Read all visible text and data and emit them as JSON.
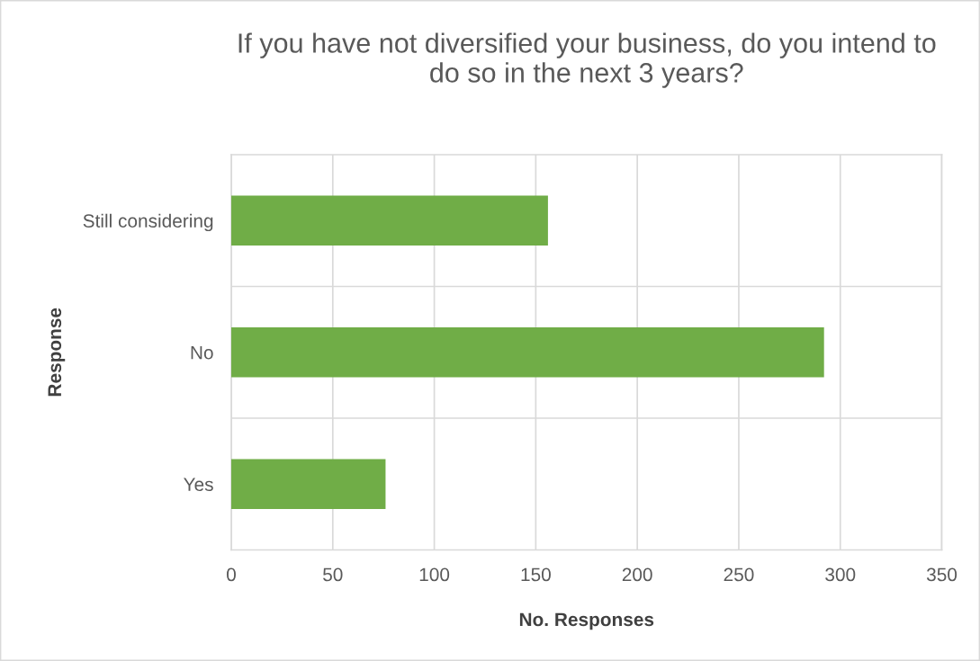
{
  "chart_data": {
    "type": "bar",
    "orientation": "horizontal",
    "title": "If you have not diversified your business, do you intend to\ndo so in the next 3 years?",
    "categories": [
      "Still considering",
      "No",
      "Yes"
    ],
    "values": [
      156,
      292,
      76
    ],
    "color": "#70ad47",
    "xlabel": "No. Responses",
    "ylabel": "Response",
    "xlim": [
      0,
      350
    ],
    "xticks": [
      0,
      50,
      100,
      150,
      200,
      250,
      300,
      350
    ],
    "grid": true
  }
}
